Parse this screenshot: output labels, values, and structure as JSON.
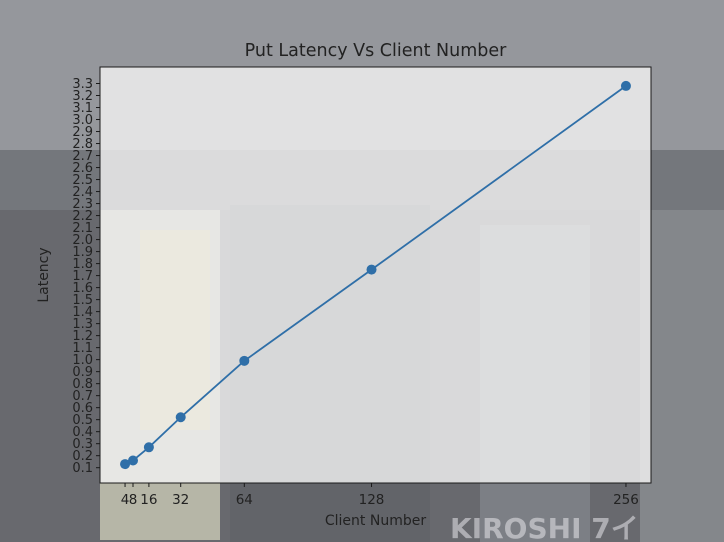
{
  "window": {
    "background_photo_text": "KIROSHI 7イ"
  },
  "chart_data": {
    "type": "line",
    "title": "Put Latency Vs Client Number",
    "xlabel": "Client Number",
    "ylabel": "Latency",
    "x": [
      4,
      8,
      16,
      32,
      64,
      128,
      256
    ],
    "series": [
      {
        "values": [
          0.13,
          0.16,
          0.27,
          0.52,
          0.99,
          1.75,
          3.28
        ]
      }
    ],
    "xticks": [
      4,
      8,
      16,
      32,
      64,
      128,
      256
    ],
    "xtick_labels": [
      "4",
      "8",
      "16",
      "32",
      "64",
      "128",
      "256"
    ],
    "yticks": [
      0.1,
      0.2,
      0.3,
      0.4,
      0.5,
      0.6,
      0.7,
      0.8,
      0.9,
      1.0,
      1.1,
      1.2,
      1.3,
      1.4,
      1.5,
      1.6,
      1.7,
      1.8,
      1.9,
      2.0,
      2.1,
      2.2,
      2.3,
      2.4,
      2.5,
      2.6,
      2.7,
      2.8,
      2.9,
      3.0,
      3.1,
      3.2,
      3.3
    ],
    "ytick_labels": [
      "0.1",
      "0.2",
      "0.3",
      "0.4",
      "0.5",
      "0.6",
      "0.7",
      "0.8",
      "0.9",
      "1.0",
      "1.1",
      "1.2",
      "1.3",
      "1.4",
      "1.5",
      "1.6",
      "1.7",
      "1.8",
      "1.9",
      "2.0",
      "2.1",
      "2.2",
      "2.3",
      "2.4",
      "2.5",
      "2.6",
      "2.7",
      "2.8",
      "2.9",
      "3.0",
      "3.1",
      "3.2",
      "3.3"
    ],
    "xlim": [
      -8.6,
      268.6
    ],
    "ylim": [
      -0.0275,
      3.4375
    ],
    "grid": false,
    "colors": {
      "line": "#2f6fa8",
      "marker": "#2f6fa8",
      "axes_bg": "rgba(242,242,242,0.82)",
      "text": "#222222"
    }
  }
}
